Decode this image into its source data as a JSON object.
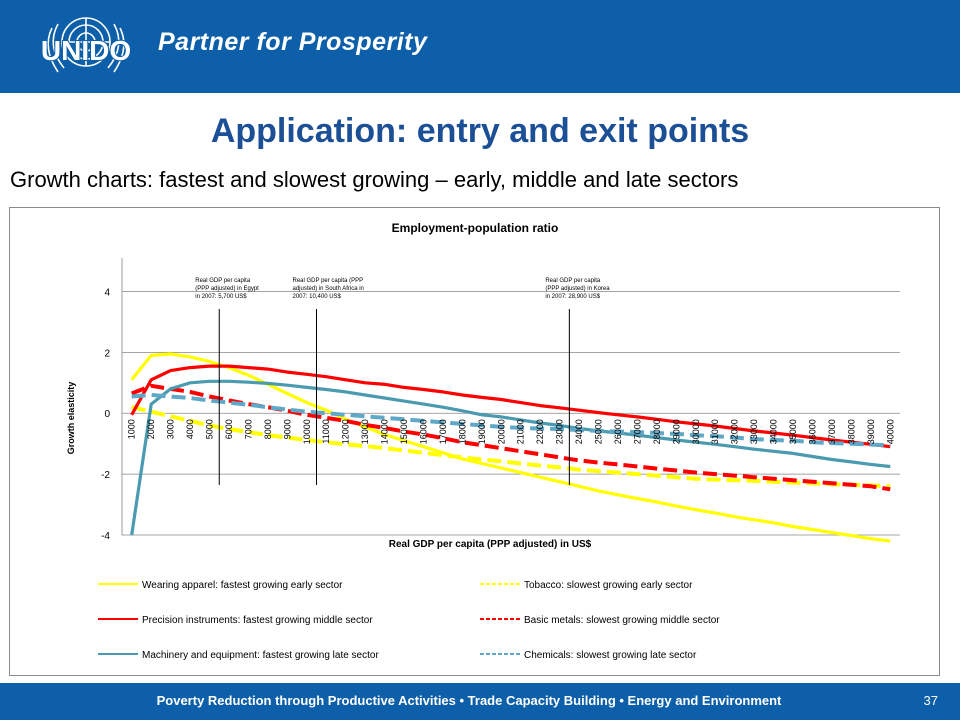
{
  "header": {
    "logo_text": "UNIDO",
    "tagline": "Partner for Prosperity",
    "brand_color": "#0c5fa8"
  },
  "slide": {
    "title": "Application: entry and exit points",
    "subtitle": "Growth charts: fastest and slowest growing – early, middle and late sectors"
  },
  "footer": {
    "text": "Poverty Reduction through Productive Activities  •  Trade Capacity Building  •  Energy and Environment",
    "page_number": "37"
  },
  "chart_data": {
    "type": "line",
    "title": "Employment-population ratio",
    "xlabel": "Real GDP per capita (PPP adjusted) in US$",
    "ylabel": "Growth elasticity",
    "yticks": [
      4,
      2,
      0,
      -2,
      -4
    ],
    "ylim": [
      -4,
      5.1
    ],
    "grid": true,
    "legend_position": "bottom",
    "categories": [
      "1000",
      "2000",
      "3000",
      "4000",
      "5000",
      "6000",
      "7000",
      "8000",
      "9000",
      "10000",
      "11000",
      "12000",
      "13000",
      "14000",
      "15000",
      "16000",
      "17000",
      "18000",
      "19000",
      "20000",
      "21000",
      "22000",
      "23000",
      "24000",
      "25000",
      "26000",
      "27000",
      "28000",
      "29000",
      "30000",
      "31000",
      "32000",
      "33000",
      "34000",
      "35000",
      "36000",
      "37000",
      "38000",
      "39000",
      "40000"
    ],
    "annotations": [
      {
        "category": "5000",
        "text": [
          "Real GDP per capita",
          "(PPP adjusted) in Egypt",
          "in 2007: 5,700 US$"
        ]
      },
      {
        "category": "10000",
        "text": [
          "Real GDP per capita (PPP",
          "adjusted) in South Africa in",
          "2007: 10,400 US$"
        ]
      },
      {
        "category": "23000",
        "text": [
          "Real GDP per capita",
          "(PPP adjusted) in Korea",
          "in 2007: 28,900 US$"
        ]
      }
    ],
    "series": [
      {
        "name": "Wearing apparel: fastest growing early sector",
        "color": "#ffff00",
        "style": "solid",
        "values": [
          1.1,
          1.9,
          1.95,
          1.85,
          1.7,
          1.5,
          1.25,
          0.95,
          0.65,
          0.35,
          0.1,
          -0.2,
          -0.45,
          -0.7,
          -0.9,
          -1.1,
          -1.3,
          -1.5,
          -1.65,
          -1.8,
          -1.95,
          -2.1,
          -2.25,
          -2.4,
          -2.55,
          -2.68,
          -2.8,
          -2.92,
          -3.05,
          -3.17,
          -3.28,
          -3.4,
          -3.5,
          -3.6,
          -3.72,
          -3.82,
          -3.92,
          -4.02,
          -4.12,
          -4.2
        ]
      },
      {
        "name": "Tobacco: slowest growing early sector",
        "color": "#ffff00",
        "style": "dashed",
        "values": [
          0.2,
          0.05,
          -0.1,
          -0.25,
          -0.4,
          -0.52,
          -0.62,
          -0.72,
          -0.8,
          -0.88,
          -0.95,
          -1.02,
          -1.08,
          -1.15,
          -1.22,
          -1.3,
          -1.38,
          -1.45,
          -1.52,
          -1.58,
          -1.65,
          -1.72,
          -1.78,
          -1.85,
          -1.9,
          -1.95,
          -2.0,
          -2.05,
          -2.1,
          -2.15,
          -2.18,
          -2.2,
          -2.22,
          -2.25,
          -2.28,
          -2.3,
          -2.33,
          -2.35,
          -2.37,
          -2.4
        ]
      },
      {
        "name": "Precision instruments: fastest growing middle sector",
        "color": "#ff0000",
        "style": "solid",
        "values": [
          -0.05,
          1.1,
          1.4,
          1.5,
          1.55,
          1.55,
          1.5,
          1.45,
          1.35,
          1.28,
          1.2,
          1.1,
          1.0,
          0.95,
          0.85,
          0.78,
          0.7,
          0.6,
          0.52,
          0.45,
          0.35,
          0.25,
          0.18,
          0.1,
          0.02,
          -0.05,
          -0.12,
          -0.2,
          -0.28,
          -0.35,
          -0.42,
          -0.5,
          -0.58,
          -0.65,
          -0.72,
          -0.8,
          -0.88,
          -0.95,
          -1.02,
          -1.1
        ]
      },
      {
        "name": "Basic metals: slowest growing middle sector",
        "color": "#ff0000",
        "style": "dashed",
        "values": [
          0.65,
          0.9,
          0.8,
          0.7,
          0.55,
          0.42,
          0.3,
          0.2,
          0.08,
          -0.05,
          -0.15,
          -0.25,
          -0.38,
          -0.48,
          -0.6,
          -0.7,
          -0.82,
          -0.95,
          -1.05,
          -1.15,
          -1.25,
          -1.35,
          -1.45,
          -1.55,
          -1.62,
          -1.68,
          -1.75,
          -1.82,
          -1.88,
          -1.95,
          -2.0,
          -2.05,
          -2.1,
          -2.15,
          -2.2,
          -2.25,
          -2.3,
          -2.35,
          -2.4,
          -2.5
        ]
      },
      {
        "name": "Machinery and equipment: fastest growing late sector",
        "color": "#4a9ab0",
        "style": "solid",
        "values": [
          -4.0,
          0.3,
          0.8,
          1.0,
          1.05,
          1.05,
          1.02,
          0.98,
          0.92,
          0.85,
          0.78,
          0.7,
          0.6,
          0.5,
          0.4,
          0.3,
          0.2,
          0.08,
          -0.05,
          -0.12,
          -0.22,
          -0.32,
          -0.4,
          -0.5,
          -0.58,
          -0.65,
          -0.72,
          -0.8,
          -0.88,
          -0.95,
          -1.02,
          -1.1,
          -1.18,
          -1.25,
          -1.32,
          -1.42,
          -1.52,
          -1.6,
          -1.68,
          -1.75
        ]
      },
      {
        "name": "Chemicals: slowest growing late sector",
        "color": "#5fa8c8",
        "style": "dashed",
        "values": [
          0.55,
          0.6,
          0.55,
          0.5,
          0.42,
          0.35,
          0.28,
          0.2,
          0.12,
          0.05,
          0.0,
          -0.05,
          -0.1,
          -0.15,
          -0.2,
          -0.25,
          -0.3,
          -0.35,
          -0.4,
          -0.45,
          -0.48,
          -0.5,
          -0.52,
          -0.55,
          -0.58,
          -0.6,
          -0.62,
          -0.65,
          -0.68,
          -0.72,
          -0.75,
          -0.8,
          -0.85,
          -0.88,
          -0.9,
          -0.95,
          -0.98,
          -1.0,
          -1.03,
          -1.05
        ]
      }
    ]
  }
}
